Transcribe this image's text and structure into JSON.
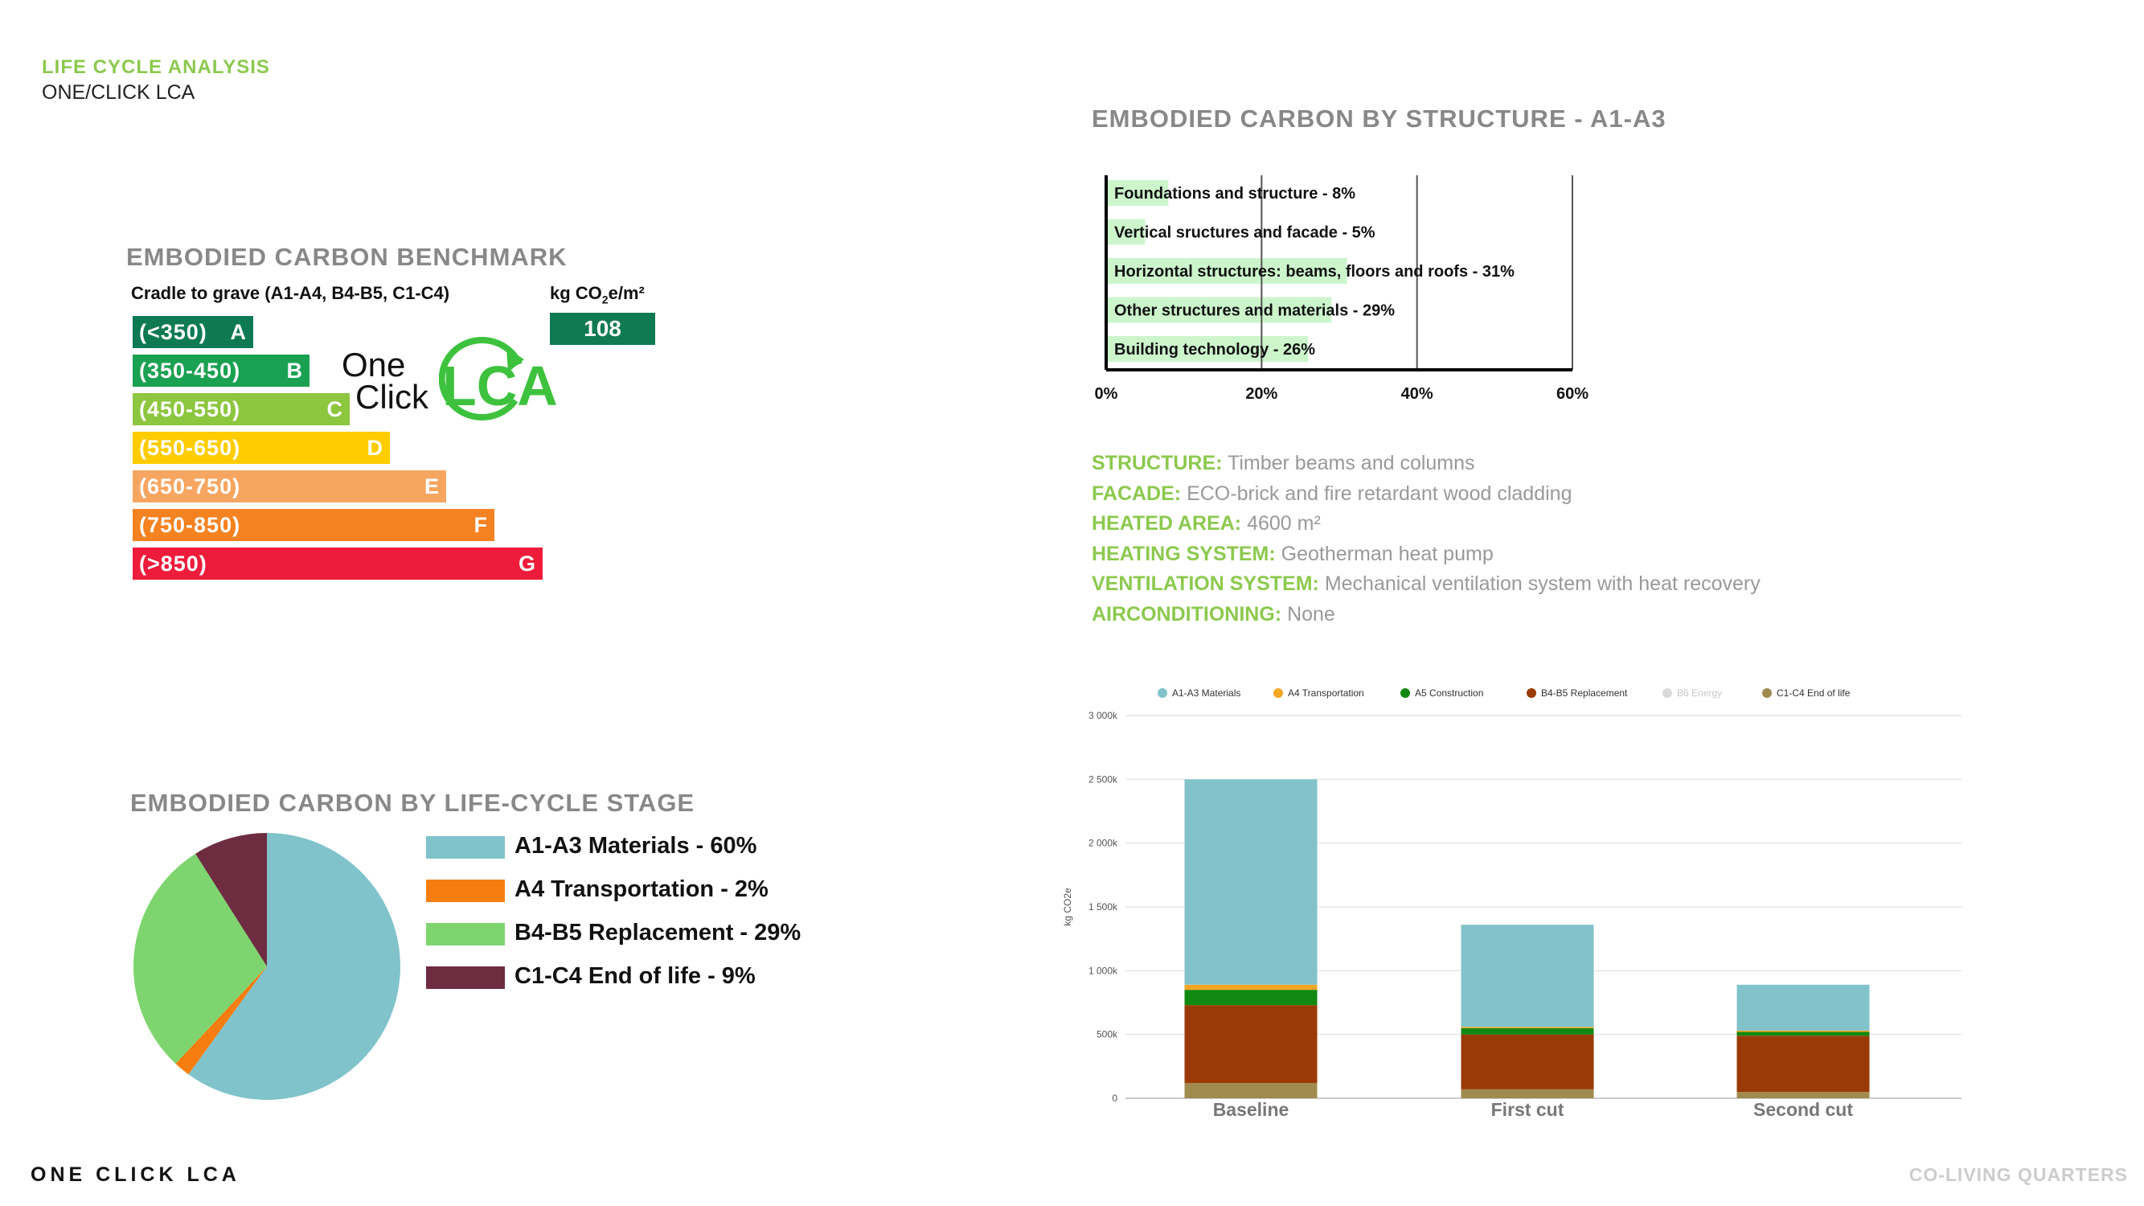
{
  "header": {
    "title": "LIFE CYCLE ANALYSIS",
    "subtitle": "ONE/CLICK LCA"
  },
  "benchmark": {
    "title": "EMBODIED CARBON BENCHMARK",
    "subtitle": "Cradle to grave (A1-A4, B4-B5, C1-C4)",
    "unit_prefix": "kg CO",
    "unit_sub": "2",
    "unit_suffix": "e/m²",
    "value": "108",
    "logo_text_one": "One",
    "logo_text_click": "Click",
    "logo_text_lca": "LCA",
    "ratings": [
      {
        "range": "(<350)",
        "grade": "A",
        "color": "#0e7a53"
      },
      {
        "range": "(350-450)",
        "grade": "B",
        "color": "#1aa151"
      },
      {
        "range": "(450-550)",
        "grade": "C",
        "color": "#8dc63f"
      },
      {
        "range": "(550-650)",
        "grade": "D",
        "color": "#ffcc00"
      },
      {
        "range": "(650-750)",
        "grade": "E",
        "color": "#f7a661"
      },
      {
        "range": "(750-850)",
        "grade": "F",
        "color": "#f58220"
      },
      {
        "range": "(>850)",
        "grade": "G",
        "color": "#ed1c3a"
      }
    ]
  },
  "structure_info": [
    {
      "key": "STRUCTURE:",
      "value": "Timber beams and columns"
    },
    {
      "key": "FACADE:",
      "value": "ECO-brick and fire retardant wood cladding"
    },
    {
      "key": "HEATED AREA:",
      "value": "4600 m²"
    },
    {
      "key": "HEATING SYSTEM:",
      "value": "Geotherman heat pump"
    },
    {
      "key": "VENTILATION SYSTEM:",
      "value": "Mechanical ventilation system with heat recovery"
    },
    {
      "key": "AIRCONDITIONING:",
      "value": "None"
    }
  ],
  "footer": {
    "left": "ONE CLICK LCA",
    "right": "CO-LIVING QUARTERS"
  },
  "chart_data": [
    {
      "type": "bar",
      "orientation": "horizontal",
      "title": "EMBODIED CARBON BY STRUCTURE - A1-A3",
      "categories": [
        "Foundations and structure - 8%",
        "Vertical sructures and facade - 5%",
        "Horizontal structures: beams, floors and roofs - 31%",
        "Other structures and materials - 29%",
        "Building technology - 26%"
      ],
      "values": [
        8,
        5,
        31,
        29,
        26
      ],
      "xlim": [
        0,
        60
      ],
      "xticks": [
        "0%",
        "20%",
        "40%",
        "60%"
      ],
      "bar_color": "#ccf5cc",
      "grid": true
    },
    {
      "type": "pie",
      "title": "EMBODIED CARBON BY LIFE-CYCLE STAGE",
      "slices": [
        {
          "name": "A1-A3 Materials - 60%",
          "value": 60,
          "color": "#80c3cb"
        },
        {
          "name": "A4 Transportation - 2%",
          "value": 2,
          "color": "#f77d10"
        },
        {
          "name": "B4-B5 Replacement - 29%",
          "value": 29,
          "color": "#7ed56f"
        },
        {
          "name": "C1-C4 End of life - 9%",
          "value": 9,
          "color": "#6e2c40"
        }
      ]
    },
    {
      "type": "bar",
      "stacked": true,
      "categories": [
        "Baseline",
        "First cut",
        "Second cut"
      ],
      "ylabel": "kg CO2e",
      "ylim": [
        0,
        3000
      ],
      "yticks": [
        "0",
        "500k",
        "1 000k",
        "1 500k",
        "2 000k",
        "2 500k",
        "3 000k"
      ],
      "legend_position": "top",
      "series": [
        {
          "name": "C1-C4 End of life",
          "values": [
            120,
            70,
            50
          ],
          "color": "#a08a4e"
        },
        {
          "name": "B4-B5 Replacement",
          "values": [
            610,
            430,
            440
          ],
          "color": "#9a3a06"
        },
        {
          "name": "B6 Energy",
          "values": [
            0,
            0,
            0
          ],
          "color": "#d9d9d9",
          "muted": true
        },
        {
          "name": "A5 Construction",
          "values": [
            120,
            50,
            30
          ],
          "color": "#118811"
        },
        {
          "name": "A4 Transportation",
          "values": [
            40,
            10,
            10
          ],
          "color": "#f5a623"
        },
        {
          "name": "A1-A3 Materials",
          "values": [
            1610,
            800,
            360
          ],
          "color": "#82c3cb"
        }
      ],
      "legend_order": [
        "A1-A3 Materials",
        "A4 Transportation",
        "A5 Construction",
        "B4-B5 Replacement",
        "B6 Energy",
        "C1-C4 End of life"
      ]
    }
  ]
}
